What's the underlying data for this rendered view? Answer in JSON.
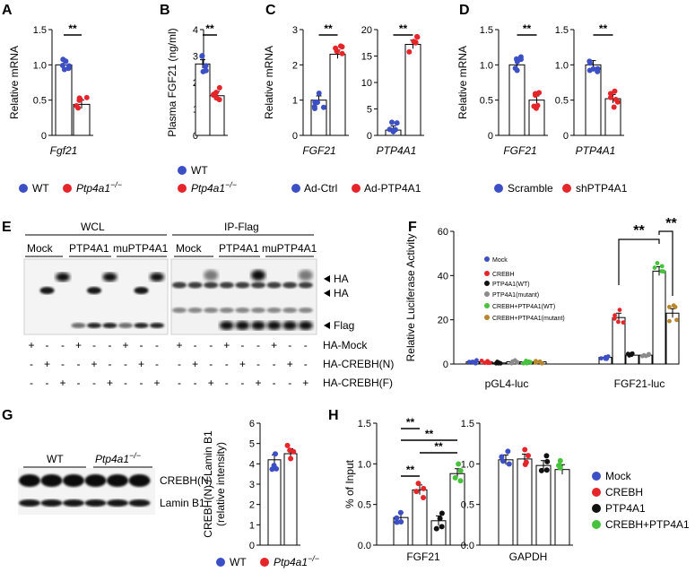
{
  "panels": {
    "A": "A",
    "B": "B",
    "C": "C",
    "D": "D",
    "E": "E",
    "F": "F",
    "G": "G",
    "H": "H"
  },
  "colors": {
    "blue": "#3d4fc4",
    "red": "#e4262a",
    "black": "#111111",
    "grey": "#8a8a8a",
    "green": "#46c23c",
    "brown": "#b8862b"
  },
  "sig": "**",
  "legends": {
    "wt": "WT",
    "ko": "Ptp4a1",
    "ko_sup": "−/−",
    "adctrl": "Ad-Ctrl",
    "adptp": "Ad-PTP4A1",
    "scramble": "Scramble",
    "shptp": "shPTP4A1"
  },
  "chart_data": [
    {
      "id": "A",
      "type": "bar",
      "title": "",
      "ylabel": "Relative mRNA",
      "categories": [
        "WT",
        "Ptp4a1−/−"
      ],
      "values": [
        1.0,
        0.44
      ],
      "ylim": [
        0,
        1.5
      ],
      "yticks": [
        "0",
        "0.5",
        "1.0",
        "1.5"
      ],
      "xlabel": "Fgf21",
      "sig": "**"
    },
    {
      "id": "B",
      "type": "bar",
      "title": "",
      "ylabel": "Plasma FGF21 (ng/ml)",
      "categories": [
        "WT",
        "Ptp4a1−/−"
      ],
      "values": [
        2.7,
        1.5
      ],
      "ylim": [
        0,
        4
      ],
      "yticks": [
        "0",
        "1",
        "2",
        "3",
        "4"
      ],
      "xlabel": "",
      "sig": "**"
    },
    {
      "id": "C1",
      "type": "bar",
      "ylabel": "Relative mRNA",
      "categories": [
        "Ad-Ctrl",
        "Ad-PTP4A1"
      ],
      "values": [
        1.0,
        2.3
      ],
      "ylim": [
        0,
        3
      ],
      "yticks": [
        "0",
        "1",
        "2",
        "3"
      ],
      "xlabel": "FGF21",
      "sig": "**"
    },
    {
      "id": "C2",
      "type": "bar",
      "ylabel": "",
      "categories": [
        "Ad-Ctrl",
        "Ad-PTP4A1"
      ],
      "values": [
        1.0,
        17.2
      ],
      "ylim": [
        0,
        20
      ],
      "yticks": [
        "0",
        "5",
        "10",
        "15",
        "20"
      ],
      "xlabel": "PTP4A1",
      "sig": "**"
    },
    {
      "id": "D1",
      "type": "bar",
      "ylabel": "Relative mRNA",
      "categories": [
        "Scramble",
        "shPTP4A1"
      ],
      "values": [
        1.0,
        0.5
      ],
      "ylim": [
        0,
        1.5
      ],
      "yticks": [
        "0",
        "0.5",
        "1.0",
        "1.5"
      ],
      "xlabel": "FGF21",
      "sig": "**"
    },
    {
      "id": "D2",
      "type": "bar",
      "ylabel": "",
      "categories": [
        "Scramble",
        "shPTP4A1"
      ],
      "values": [
        1.0,
        0.52
      ],
      "ylim": [
        0,
        1.5
      ],
      "yticks": [
        "0",
        "0.5",
        "1.0",
        "1.5"
      ],
      "xlabel": "PTP4A1",
      "sig": "**"
    },
    {
      "id": "F",
      "type": "bar",
      "ylabel": "Relative Luciferase Activity",
      "groups": [
        "pGL4-luc",
        "FGF21-luc"
      ],
      "ylim": [
        0,
        60
      ],
      "yticks": [
        "0",
        "20",
        "40",
        "60"
      ],
      "series": [
        {
          "name": "Mock",
          "values": [
            1,
            3
          ]
        },
        {
          "name": "CREBH",
          "values": [
            1,
            21
          ]
        },
        {
          "name": "PTP4A1(WT)",
          "values": [
            0.5,
            4
          ]
        },
        {
          "name": "PTP4A1(mutant)",
          "values": [
            1,
            4
          ]
        },
        {
          "name": "CREBH+PTP4A1(WT)",
          "values": [
            1,
            42
          ]
        },
        {
          "name": "CREBH+PTP4A1(mutant)",
          "values": [
            1,
            23
          ]
        }
      ],
      "sig": "**"
    },
    {
      "id": "G",
      "type": "bar",
      "ylabel": "CREBH(N) / Lamin B1",
      "ylabel2": "(relative intensity)",
      "categories": [
        "WT",
        "Ptp4a1−/−"
      ],
      "values": [
        4.2,
        4.5
      ],
      "ylim": [
        0,
        6
      ],
      "yticks": [
        "0",
        "1",
        "2",
        "3",
        "4",
        "5",
        "6"
      ]
    },
    {
      "id": "H1",
      "type": "bar",
      "ylabel": "% of Input",
      "categories": [
        "Mock",
        "CREBH",
        "PTP4A1",
        "CREBH+PTP4A1"
      ],
      "values": [
        0.34,
        0.68,
        0.3,
        0.88
      ],
      "ylim": [
        0,
        1.5
      ],
      "yticks": [
        "0.0",
        "0.5",
        "1.0",
        "1.5"
      ],
      "xlabel": "FGF21",
      "sig": "**"
    },
    {
      "id": "H2",
      "type": "bar",
      "ylabel": "",
      "categories": [
        "Mock",
        "CREBH",
        "PTP4A1",
        "CREBH+PTP4A1"
      ],
      "values": [
        1.05,
        1.06,
        0.98,
        0.93
      ],
      "ylim": [
        0,
        1.5
      ],
      "yticks": [
        "0.0",
        "0.5",
        "1.0",
        "1.5"
      ],
      "xlabel": "GAPDH"
    }
  ],
  "blotE": {
    "wcl": "WCL",
    "ip": "IP-Flag",
    "groups": [
      "Mock",
      "PTP4A1",
      "muPTP4A1"
    ],
    "bands": [
      "HA",
      "HA",
      "Flag"
    ],
    "rows": [
      {
        "label": "HA-Mock",
        "signs": [
          "+",
          "-",
          "-",
          "+",
          "-",
          "-",
          "+",
          "-",
          "-",
          "+",
          "-",
          "-",
          "+",
          "-",
          "-",
          "+",
          "-",
          "-"
        ]
      },
      {
        "label": "HA-CREBH(N)",
        "signs": [
          "-",
          "+",
          "-",
          "-",
          "+",
          "-",
          "-",
          "+",
          "-",
          "-",
          "+",
          "-",
          "-",
          "+",
          "-",
          "-",
          "+",
          "-"
        ]
      },
      {
        "label": "HA-CREBH(F)",
        "signs": [
          "-",
          "-",
          "+",
          "-",
          "-",
          "+",
          "-",
          "-",
          "+",
          "-",
          "-",
          "+",
          "-",
          "-",
          "+",
          "-",
          "-",
          "+"
        ]
      }
    ]
  },
  "blotG": {
    "wt": "WT",
    "ko": "Ptp4a1",
    "ko_sup": "−/−",
    "crebh": "CREBH(N)",
    "lamin": "Lamin B1"
  },
  "legendF": [
    "Mock",
    "CREBH",
    "PTP4A1(WT)",
    "PTP4A1(mutant)",
    "CREBH+PTP4A1(WT)",
    "CREBH+PTP4A1(mutant)"
  ],
  "legendH": [
    "Mock",
    "CREBH",
    "PTP4A1",
    "CREBH+PTP4A1"
  ]
}
